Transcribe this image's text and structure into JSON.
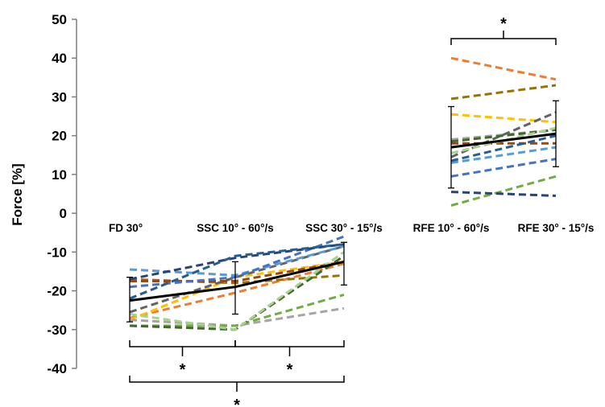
{
  "chart_data": {
    "type": "line",
    "ylabel": "Force [%]",
    "ylim": [
      -40,
      50
    ],
    "yticks": [
      50,
      40,
      30,
      20,
      10,
      0,
      -10,
      -20,
      -30,
      -40
    ],
    "categories": [
      "FD 30°",
      "SSC 10° - 60°/s",
      "SSC 30° - 15°/s",
      "RFE 10° - 60°/s",
      "RFE 30° - 15°/s"
    ],
    "grid": false,
    "legend": "none",
    "individual_series": [
      {
        "color": "#ed7d31",
        "values": [
          -27,
          -20.5,
          -13,
          40,
          34.5
        ]
      },
      {
        "color": "#997300",
        "values": [
          -17,
          -18,
          -16,
          29.5,
          33
        ]
      },
      {
        "color": "#ffc000",
        "values": [
          -27.5,
          -16.5,
          -12.5,
          25.5,
          23.5
        ]
      },
      {
        "color": "#a5a5a5",
        "values": [
          -27.5,
          -29,
          -24.5,
          19,
          21.5
        ]
      },
      {
        "color": "#636363",
        "values": [
          -25.5,
          -16.5,
          -8.5,
          14.5,
          26
        ]
      },
      {
        "color": "#9e480e",
        "values": [
          -17.5,
          -17.5,
          -12.5,
          18,
          18
        ]
      },
      {
        "color": "#70ad47",
        "values": [
          -29,
          -29,
          -21,
          2,
          9.5
        ]
      },
      {
        "color": "#5b9bd5",
        "values": [
          -14.5,
          -16,
          -8.5,
          13,
          17
        ]
      },
      {
        "color": "#4472c4",
        "values": [
          -19,
          -16.5,
          -6,
          9.5,
          14
        ]
      },
      {
        "color": "#264478",
        "values": [
          -17,
          -11.5,
          -8,
          5.5,
          4.5
        ]
      },
      {
        "color": "#255e91",
        "values": [
          -22,
          -11,
          -8,
          13.5,
          20
        ]
      },
      {
        "color": "#43682b",
        "values": [
          -29,
          -30,
          -11,
          18.5,
          21.5
        ]
      },
      {
        "color": "#a9d18e",
        "values": [
          -26,
          -30,
          -10,
          15.5,
          22
        ]
      }
    ],
    "mean_series": {
      "color": "#000000",
      "values": [
        -22.5,
        -19,
        -12.5,
        17,
        20.5
      ],
      "error_high": [
        -16.5,
        -12.5,
        -7.5,
        27.5,
        29
      ],
      "error_low": [
        -28,
        -26,
        -18.5,
        6.5,
        12
      ]
    },
    "significance": [
      {
        "from": 0,
        "to": 1,
        "label": "*",
        "position": "below",
        "level": 1
      },
      {
        "from": 1,
        "to": 2,
        "label": "*",
        "position": "below",
        "level": 1
      },
      {
        "from": 0,
        "to": 2,
        "label": "*",
        "position": "below",
        "level": 2
      },
      {
        "from": 3,
        "to": 4,
        "label": "*",
        "position": "above",
        "level": 1
      }
    ]
  }
}
